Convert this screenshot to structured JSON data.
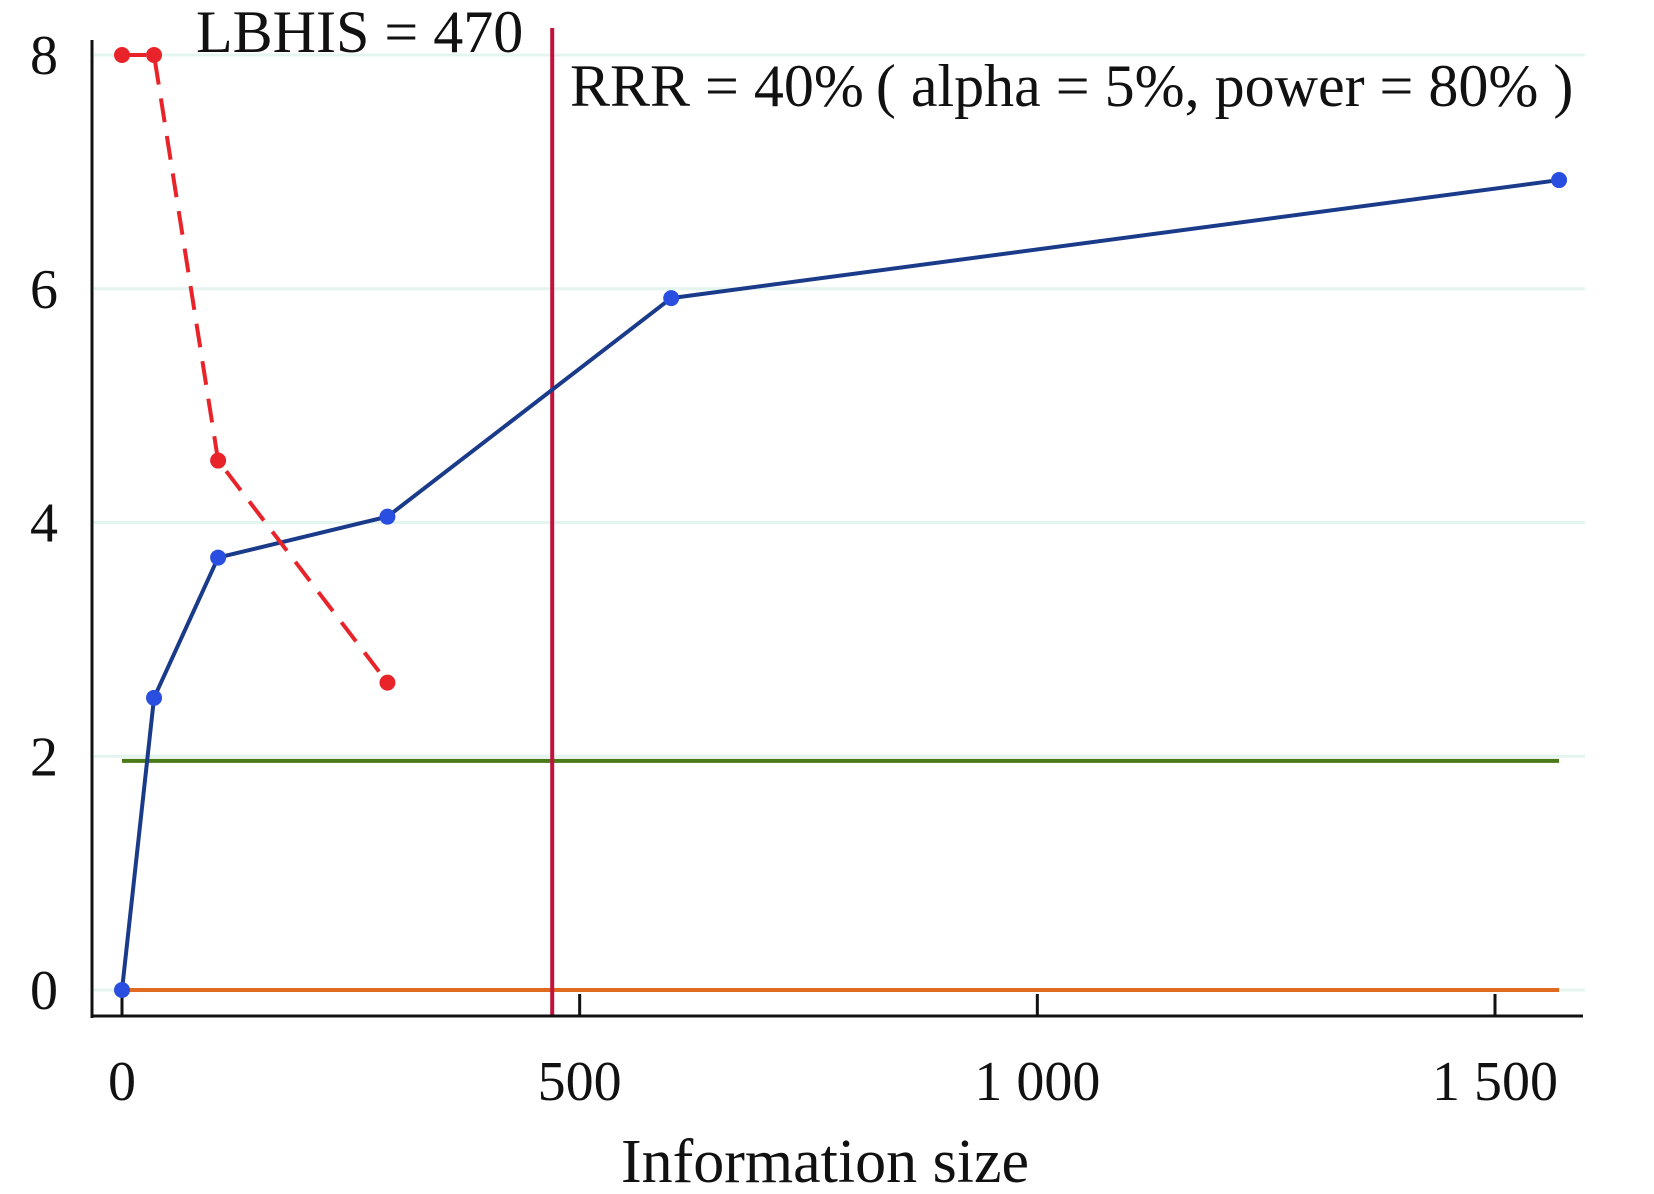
{
  "chart_data": {
    "type": "line",
    "xlabel": "Information size",
    "ylabel": "",
    "xlim": [
      -30,
      1600
    ],
    "ylim": [
      -0.1,
      8.3
    ],
    "x_ticks": [
      0,
      500,
      1000,
      1500
    ],
    "x_tick_labels": [
      "0",
      "500",
      "1 000",
      "1 500"
    ],
    "y_ticks": [
      0,
      2,
      4,
      6,
      8
    ],
    "y_tick_labels": [
      "0",
      "2",
      "4",
      "6",
      "8"
    ],
    "grid": "horizontal at y ticks",
    "series": [
      {
        "color": "#1a3a8a",
        "marker_color": "#2a4fe0",
        "line_style": "solid",
        "x": [
          0,
          35,
          105,
          290,
          600,
          1570
        ],
        "y": [
          0.0,
          2.5,
          3.7,
          4.05,
          5.92,
          6.93
        ]
      },
      {
        "color": "#e8242a",
        "marker_color": "#e8242a",
        "line_style": "dashed",
        "x": [
          0,
          35,
          105,
          290
        ],
        "y": [
          8.0,
          8.0,
          4.53,
          2.63
        ]
      }
    ],
    "reference_lines": [
      {
        "orientation": "horizontal",
        "value": 1.96,
        "color": "#4a7a1a",
        "x_range": [
          0,
          1570
        ]
      },
      {
        "orientation": "horizontal",
        "value": 0.0,
        "color": "#e06a20",
        "x_range": [
          0,
          1570
        ]
      },
      {
        "orientation": "vertical",
        "value": 470,
        "color": "#c0143c"
      }
    ],
    "annotations": {
      "lbhis": "LBHIS = 470",
      "rrr": "RRR = 40% ( alpha = 5%, power = 80% )"
    },
    "colors": {
      "gridline": "#e4f4ee",
      "axis": "#111111"
    }
  }
}
